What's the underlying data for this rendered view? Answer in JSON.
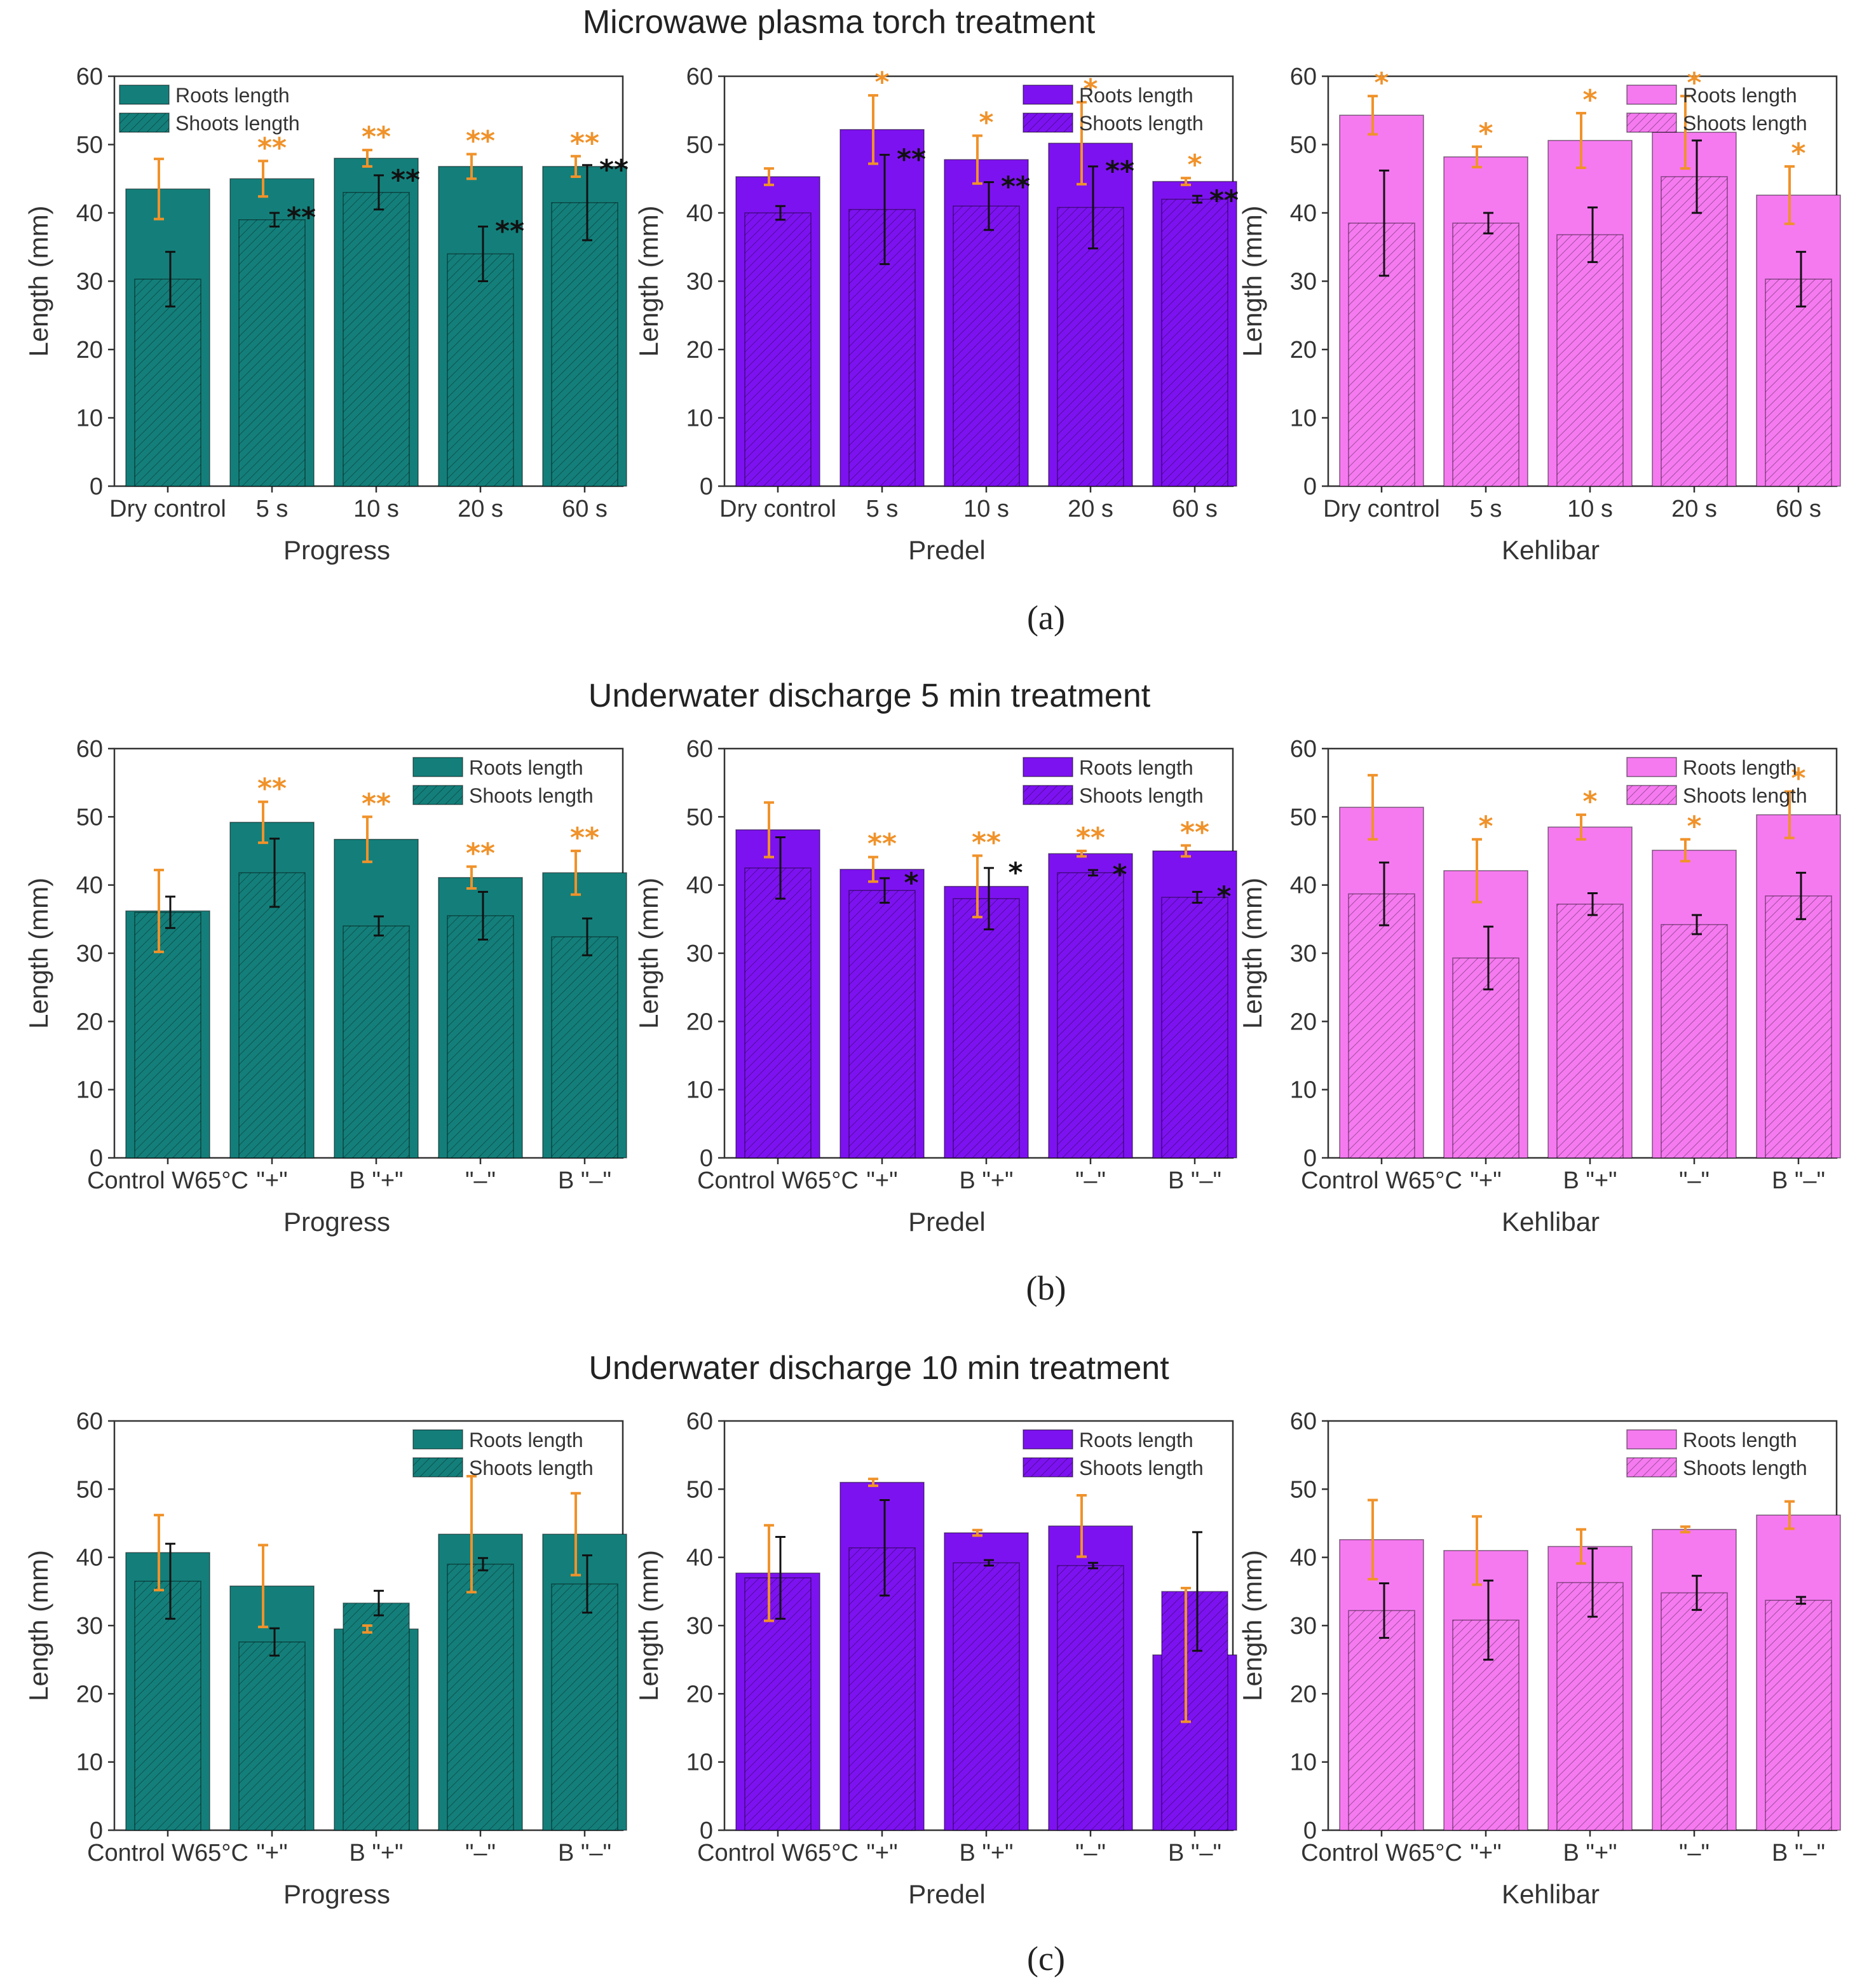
{
  "figure": {
    "rows": [
      {
        "title": "Microwawe plasma torch treatment",
        "label": "(a)"
      },
      {
        "title": "Underwater discharge 5 min treatment",
        "label": "(b)"
      },
      {
        "title": "Underwater discharge 10 min treatment",
        "label": "(c)"
      }
    ],
    "colors": {
      "Progress": "#147f7a",
      "Predel": "#7d12f0",
      "Kehlibar": "#f57af0",
      "sig_orange": "#f0922a",
      "sig_black": "#111111"
    }
  },
  "chart_data": [
    {
      "type": "bar",
      "title": "Microwawe plasma torch treatment",
      "xlabel": "Progress",
      "ylabel": "Length (mm)",
      "ylim": [
        0,
        60
      ],
      "yticks": [
        0,
        10,
        20,
        30,
        40,
        50,
        60
      ],
      "categories": [
        "Dry control",
        "5 s",
        "10 s",
        "20 s",
        "60 s"
      ],
      "legend": [
        "Roots length",
        "Shoots length"
      ],
      "legend_position": "top-left",
      "series": [
        {
          "name": "Roots length",
          "values": [
            43.5,
            45,
            48,
            46.8,
            46.8
          ],
          "errors": [
            4.4,
            2.6,
            1.2,
            1.8,
            1.5
          ],
          "significance": [
            "",
            "**",
            "**",
            "**",
            "**"
          ]
        },
        {
          "name": "Shoots length",
          "values": [
            30.3,
            39,
            43,
            34,
            41.5
          ],
          "errors": [
            4,
            1,
            2.5,
            4,
            5.5
          ],
          "significance": [
            "",
            "**",
            "**",
            "**",
            "**"
          ]
        }
      ]
    },
    {
      "type": "bar",
      "title": "Microwawe plasma torch treatment",
      "xlabel": "Predel",
      "ylabel": "Length (mm)",
      "ylim": [
        0,
        60
      ],
      "yticks": [
        0,
        10,
        20,
        30,
        40,
        50,
        60
      ],
      "categories": [
        "Dry control",
        "5 s",
        "10 s",
        "20 s",
        "60 s"
      ],
      "legend": [
        "Roots length",
        "Shoots length"
      ],
      "legend_position": "top-right",
      "series": [
        {
          "name": "Roots length",
          "values": [
            45.3,
            52.2,
            47.8,
            50.2,
            44.6
          ],
          "errors": [
            1.2,
            5,
            3.5,
            6,
            0.5
          ],
          "significance": [
            "",
            "*",
            "*",
            "*",
            "*"
          ]
        },
        {
          "name": "Shoots length",
          "values": [
            40,
            40.5,
            41,
            40.8,
            42
          ],
          "errors": [
            1,
            8,
            3.5,
            6,
            0.5
          ],
          "significance": [
            "",
            "**",
            "**",
            "**",
            "**"
          ]
        }
      ]
    },
    {
      "type": "bar",
      "title": "Microwawe plasma torch treatment",
      "xlabel": "Kehlibar",
      "ylabel": "Length (mm)",
      "ylim": [
        0,
        60
      ],
      "yticks": [
        0,
        10,
        20,
        30,
        40,
        50,
        60
      ],
      "categories": [
        "Dry control",
        "5 s",
        "10 s",
        "20 s",
        "60 s"
      ],
      "legend": [
        "Roots length",
        "Shoots length"
      ],
      "legend_position": "top-right",
      "series": [
        {
          "name": "Roots length",
          "values": [
            54.3,
            48.2,
            50.6,
            51.8,
            42.6
          ],
          "errors": [
            2.8,
            1.5,
            4,
            5.3,
            4.2
          ],
          "significance": [
            "*",
            "*",
            "*",
            "*",
            "*"
          ]
        },
        {
          "name": "Shoots length",
          "values": [
            38.5,
            38.5,
            36.8,
            45.3,
            30.3
          ],
          "errors": [
            7.7,
            1.5,
            4,
            5.3,
            4
          ],
          "significance": [
            "",
            "",
            "",
            "",
            ""
          ]
        }
      ]
    },
    {
      "type": "bar",
      "title": "Underwater discharge 5 min treatment",
      "xlabel": "Progress",
      "ylabel": "Length (mm)",
      "ylim": [
        0,
        60
      ],
      "yticks": [
        0,
        10,
        20,
        30,
        40,
        50,
        60
      ],
      "categories": [
        "Control W65°C",
        "\"+\"",
        "B \"+\"",
        "\"–\"",
        "B \"–\""
      ],
      "legend": [
        "Roots length",
        "Shoots length"
      ],
      "legend_position": "top-right",
      "series": [
        {
          "name": "Roots length",
          "values": [
            36.2,
            49.2,
            46.7,
            41.1,
            41.8
          ],
          "errors": [
            6,
            3,
            3.3,
            1.6,
            3.2
          ],
          "significance": [
            "",
            "**",
            "**",
            "**",
            "**"
          ]
        },
        {
          "name": "Shoots length",
          "values": [
            36,
            41.8,
            34,
            35.5,
            32.4
          ],
          "errors": [
            2.3,
            5,
            1.4,
            3.5,
            2.7
          ],
          "significance": [
            "",
            "",
            "",
            "",
            ""
          ]
        }
      ]
    },
    {
      "type": "bar",
      "title": "Underwater discharge 5 min treatment",
      "xlabel": "Predel",
      "ylabel": "Length (mm)",
      "ylim": [
        0,
        60
      ],
      "yticks": [
        0,
        10,
        20,
        30,
        40,
        50,
        60
      ],
      "categories": [
        "Control W65°C",
        "\"+\"",
        "B \"+\"",
        "\"–\"",
        "B \"–\""
      ],
      "legend": [
        "Roots length",
        "Shoots length"
      ],
      "legend_position": "top-right",
      "series": [
        {
          "name": "Roots length",
          "values": [
            48.1,
            42.3,
            39.8,
            44.6,
            45
          ],
          "errors": [
            4,
            1.8,
            4.5,
            0.4,
            0.8
          ],
          "significance": [
            "",
            "**",
            "**",
            "**",
            "**"
          ]
        },
        {
          "name": "Shoots length",
          "values": [
            42.5,
            39.2,
            38,
            41.8,
            38.2
          ],
          "errors": [
            4.5,
            1.8,
            4.5,
            0.4,
            0.8
          ],
          "significance": [
            "",
            "*",
            "*",
            "*",
            "*"
          ]
        }
      ]
    },
    {
      "type": "bar",
      "title": "Underwater discharge 5 min treatment",
      "xlabel": "Kehlibar",
      "ylabel": "Length (mm)",
      "ylim": [
        0,
        60
      ],
      "yticks": [
        0,
        10,
        20,
        30,
        40,
        50,
        60
      ],
      "categories": [
        "Control W65°C",
        "\"+\"",
        "B \"+\"",
        "\"–\"",
        "B \"–\""
      ],
      "legend": [
        "Roots length",
        "Shoots length"
      ],
      "legend_position": "top-right",
      "series": [
        {
          "name": "Roots length",
          "values": [
            51.4,
            42.1,
            48.5,
            45.1,
            50.3
          ],
          "errors": [
            4.7,
            4.6,
            1.8,
            1.6,
            3.4
          ],
          "significance": [
            "",
            "*",
            "*",
            "*",
            "*"
          ]
        },
        {
          "name": "Shoots length",
          "values": [
            38.7,
            29.3,
            37.2,
            34.2,
            38.4
          ],
          "errors": [
            4.6,
            4.6,
            1.6,
            1.4,
            3.4
          ],
          "significance": [
            "",
            "",
            "",
            "",
            ""
          ]
        }
      ]
    },
    {
      "type": "bar",
      "title": "Underwater discharge 10 min treatment",
      "xlabel": "Progress",
      "ylabel": "Length (mm)",
      "ylim": [
        0,
        60
      ],
      "yticks": [
        0,
        10,
        20,
        30,
        40,
        50,
        60
      ],
      "categories": [
        "Control W65°C",
        "\"+\"",
        "B \"+\"",
        "\"–\"",
        "B \"–\""
      ],
      "legend": [
        "Roots length",
        "Shoots length"
      ],
      "legend_position": "top-right",
      "series": [
        {
          "name": "Roots length",
          "values": [
            40.7,
            35.8,
            29.5,
            43.4,
            43.4
          ],
          "errors": [
            5.5,
            6,
            0.5,
            8.5,
            6
          ],
          "significance": [
            "",
            "",
            "",
            "",
            ""
          ]
        },
        {
          "name": "Shoots length",
          "values": [
            36.5,
            27.6,
            33.3,
            39,
            36.1
          ],
          "errors": [
            5.5,
            2,
            1.8,
            0.9,
            4.2
          ],
          "significance": [
            "",
            "",
            "",
            "",
            ""
          ]
        }
      ]
    },
    {
      "type": "bar",
      "title": "Underwater discharge 10 min treatment",
      "xlabel": "Predel",
      "ylabel": "Length (mm)",
      "ylim": [
        0,
        60
      ],
      "yticks": [
        0,
        10,
        20,
        30,
        40,
        50,
        60
      ],
      "categories": [
        "Control W65°C",
        "\"+\"",
        "B \"+\"",
        "\"–\"",
        "B \"–\""
      ],
      "legend": [
        "Roots length",
        "Shoots length"
      ],
      "legend_position": "top-right",
      "series": [
        {
          "name": "Roots length",
          "values": [
            37.7,
            51,
            43.6,
            44.6,
            25.7
          ],
          "errors": [
            7,
            0.5,
            0.4,
            4.5,
            9.8
          ],
          "significance": [
            "",
            "",
            "",
            "",
            ""
          ]
        },
        {
          "name": "Shoots length",
          "values": [
            37,
            41.4,
            39.2,
            38.8,
            35
          ],
          "errors": [
            6,
            7,
            0.4,
            0.4,
            8.7
          ],
          "significance": [
            "",
            "",
            "",
            "",
            ""
          ]
        }
      ]
    },
    {
      "type": "bar",
      "title": "Underwater discharge 10 min treatment",
      "xlabel": "Kehlibar",
      "ylabel": "Length (mm)",
      "ylim": [
        0,
        60
      ],
      "yticks": [
        0,
        10,
        20,
        30,
        40,
        50,
        60
      ],
      "categories": [
        "Control W65°C",
        "\"+\"",
        "B \"+\"",
        "\"–\"",
        "B \"–\""
      ],
      "legend": [
        "Roots length",
        "Shoots length"
      ],
      "legend_position": "top-right",
      "series": [
        {
          "name": "Roots length",
          "values": [
            42.6,
            41,
            41.6,
            44.1,
            46.2
          ],
          "errors": [
            5.8,
            5,
            2.5,
            0.4,
            2
          ],
          "significance": [
            "",
            "",
            "",
            "",
            ""
          ]
        },
        {
          "name": "Shoots length",
          "values": [
            32.2,
            30.8,
            36.3,
            34.8,
            33.7
          ],
          "errors": [
            4,
            5.8,
            5,
            2.5,
            0.5
          ],
          "significance": [
            "",
            "",
            "",
            "",
            ""
          ]
        }
      ]
    }
  ]
}
